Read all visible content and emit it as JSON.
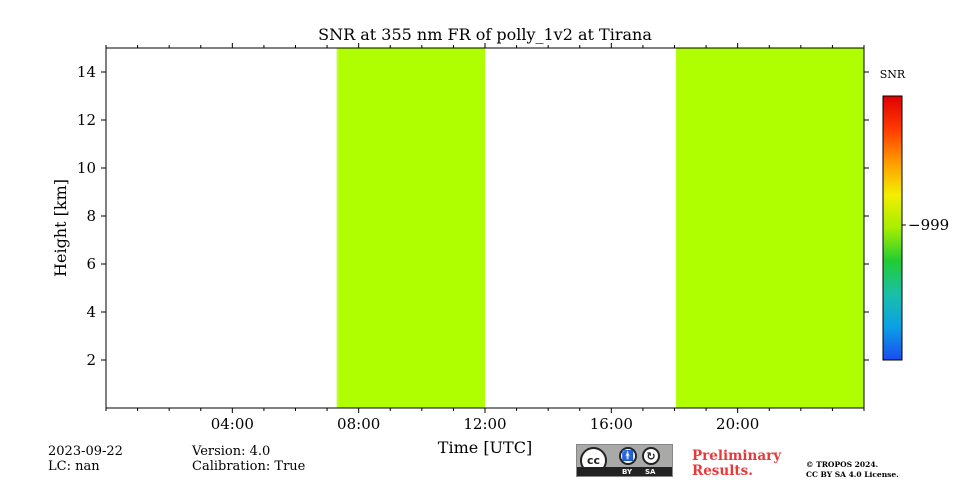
{
  "chart_data": {
    "type": "heatmap",
    "title": "SNR at 355 nm FR of polly_1v2 at Tirana",
    "xlabel": "Time [UTC]",
    "ylabel": "Height [km]",
    "xlim": [
      0,
      24
    ],
    "ylim": [
      0,
      15
    ],
    "x_ticks": [
      {
        "value": 4,
        "label": "04:00"
      },
      {
        "value": 8,
        "label": "08:00"
      },
      {
        "value": 12,
        "label": "12:00"
      },
      {
        "value": 16,
        "label": "16:00"
      },
      {
        "value": 20,
        "label": "20:00"
      }
    ],
    "y_ticks": [
      {
        "value": 2,
        "label": "2"
      },
      {
        "value": 4,
        "label": "4"
      },
      {
        "value": 6,
        "label": "6"
      },
      {
        "value": 8,
        "label": "8"
      },
      {
        "value": 10,
        "label": "10"
      },
      {
        "value": 12,
        "label": "12"
      },
      {
        "value": 14,
        "label": "14"
      }
    ],
    "data_blocks": [
      {
        "x_start": 7.3,
        "x_end": 7.35,
        "color": "#c8f55a"
      },
      {
        "x_start": 7.35,
        "x_end": 12.0,
        "color": "#b0ff00"
      },
      {
        "x_start": 18.05,
        "x_end": 24.0,
        "color": "#b0ff00"
      }
    ],
    "colorbar": {
      "label": "SNR",
      "tick_label": "−999",
      "colors": [
        "#1a4cf0",
        "#0aa0e6",
        "#19c0a8",
        "#22cc33",
        "#a6ee00",
        "#f3ef00",
        "#ff9a00",
        "#ff3a00",
        "#e00000"
      ]
    }
  },
  "footer": {
    "date": "2023-09-22",
    "lc": "LC: nan",
    "version": "Version: 4.0",
    "calibration": "Calibration: True",
    "preliminary_line1": "Preliminary",
    "preliminary_line2": "Results.",
    "copyright_line1": "© TROPOS 2024.",
    "copyright_line2": "CC BY SA 4.0 License.",
    "license_by": "BY",
    "license_sa": "SA"
  }
}
